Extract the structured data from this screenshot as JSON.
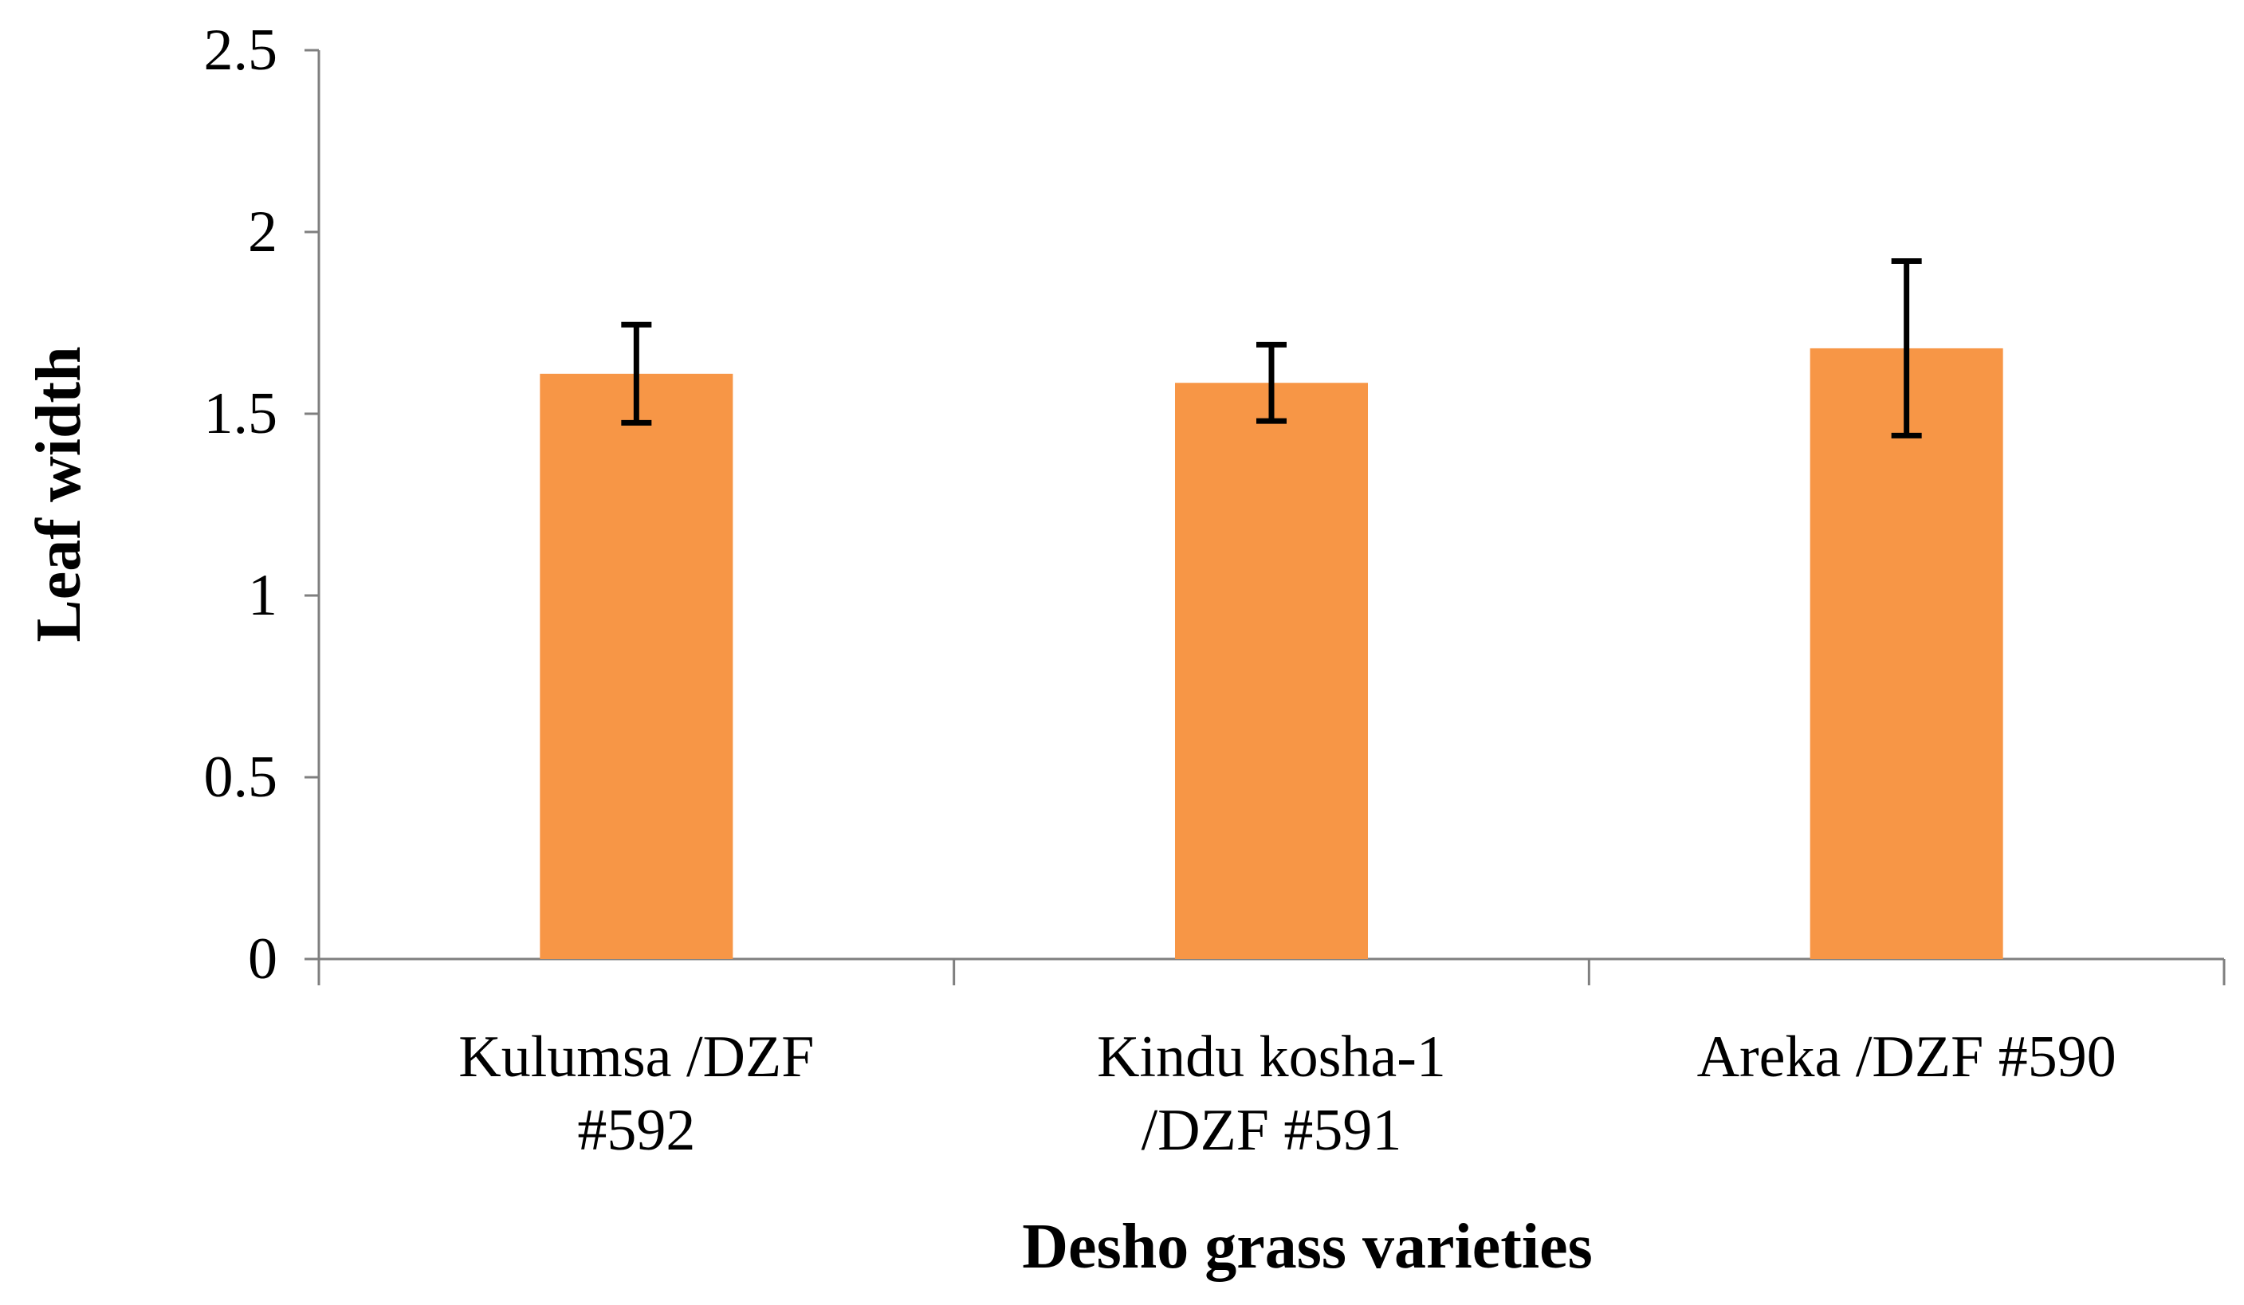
{
  "chart_data": {
    "type": "bar",
    "categories": [
      [
        "Kulumsa /DZF",
        "#592"
      ],
      [
        "Kindu kosha-1",
        "/DZF #591"
      ],
      [
        "Areka /DZF #590"
      ]
    ],
    "values": [
      1.61,
      1.585,
      1.68
    ],
    "error": [
      0.135,
      0.105,
      0.24
    ],
    "xlabel": "Desho grass varieties",
    "ylabel": "Leaf width",
    "ylim": [
      0,
      2.5
    ],
    "yticks": [
      "0",
      "0.5",
      "1",
      "1.5",
      "2",
      "2.5"
    ],
    "grid": false,
    "legend": "none",
    "bar_color": "#F79646",
    "error_color": "#000000",
    "axis_color": "#7F7F7F"
  }
}
